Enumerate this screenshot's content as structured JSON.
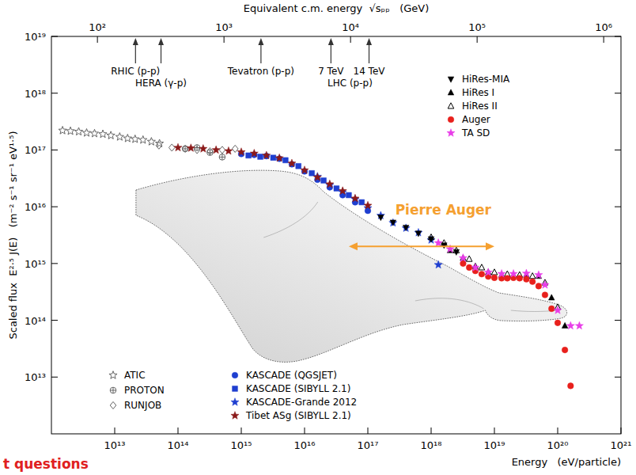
{
  "chart_data": {
    "type": "scatter",
    "x2_label": "Equivalent c.m. energy  √sₚₚ   (GeV)",
    "x_label": "Energy   (eV/particle)",
    "y_label": "Scaled flux  E²·⁵ J(E)   (m⁻² s⁻¹ sr⁻¹ eV¹·⁵)",
    "log": true,
    "grid": false,
    "legend": "lower left",
    "xlim": [
      1000000000000.0,
      1e+21
    ],
    "xticks": [
      {
        "value": 10000000000000.0,
        "label": "10¹³"
      },
      {
        "value": 100000000000000.0,
        "label": "10¹⁴"
      },
      {
        "value": 1000000000000000.0,
        "label": "10¹⁵"
      },
      {
        "value": 1e+16,
        "label": "10¹⁶"
      },
      {
        "value": 1e+17,
        "label": "10¹⁷"
      },
      {
        "value": 1e+18,
        "label": "10¹⁸"
      },
      {
        "value": 1e+19,
        "label": "10¹⁹"
      },
      {
        "value": 1e+20,
        "label": "10²⁰"
      },
      {
        "value": 1e+21,
        "label": "10²¹"
      }
    ],
    "ylim": [
      1000000000000.0,
      1e+19
    ],
    "yticks": [
      {
        "value": 10000000000000.0,
        "label": "10¹³"
      },
      {
        "value": 100000000000000.0,
        "label": "10¹⁴"
      },
      {
        "value": 1000000000000000.0,
        "label": "10¹⁵"
      },
      {
        "value": 1e+16,
        "label": "10¹⁶"
      },
      {
        "value": 1e+17,
        "label": "10¹⁷"
      },
      {
        "value": 1e+18,
        "label": "10¹⁸"
      },
      {
        "value": 1e+19,
        "label": "10¹⁹"
      }
    ],
    "x2lim": [
      43.31,
      1369700
    ],
    "x2ticks": [
      {
        "value": 100,
        "label": "10²"
      },
      {
        "value": 1000,
        "label": "10³"
      },
      {
        "value": 10000,
        "label": "10⁴"
      },
      {
        "value": 100000,
        "label": "10⁵"
      },
      {
        "value": 1000000,
        "label": "10⁶"
      }
    ],
    "accelerators": [
      {
        "x2": 200,
        "label": "RHIC (p-p)"
      },
      {
        "x2": 318,
        "label": "HERA (γ-p)"
      },
      {
        "x2": 1960,
        "label": "Tevatron (p-p)"
      },
      {
        "x2": 7000,
        "label": "7 TeV"
      },
      {
        "x2": 14000,
        "label": "14 TeV"
      }
    ],
    "accelerator_group": {
      "x2": [
        7000,
        14000
      ],
      "label": "LHC (p-p)"
    },
    "range_annotation": {
      "label": "Pierre Auger",
      "x": [
        5e+16,
        1e+19
      ],
      "y": 2000000000000000.0,
      "color": "#f5a030"
    },
    "slide_text": "t questions",
    "series": [
      {
        "name": "ATIC",
        "color": "#666666",
        "marker": "open-star",
        "x": [
          1500000000000.0,
          2000000000000.0,
          2700000000000.0,
          3600000000000.0,
          4800000000000.0,
          6500000000000.0,
          8700000000000.0,
          12000000000000.0,
          16000000000000.0,
          21000000000000.0,
          28000000000000.0,
          38000000000000.0,
          51000000000000.0
        ],
        "values": [
          2.2e+17,
          2.15e+17,
          2.1e+17,
          2e+17,
          1.95e+17,
          1.9e+17,
          1.8e+17,
          1.7e+17,
          1.6e+17,
          1.55e+17,
          1.5e+17,
          1.4e+17,
          1.3e+17
        ]
      },
      {
        "name": "PROTON",
        "color": "#666666",
        "marker": "circle-cross",
        "x": [
          130000000000000.0,
          200000000000000.0,
          320000000000000.0,
          500000000000000.0
        ],
        "values": [
          1.05e+17,
          1.1e+17,
          9e+16,
          7.5e+16
        ]
      },
      {
        "name": "RUNJOB",
        "color": "#666666",
        "marker": "open-diamond",
        "x": [
          50000000000000.0,
          80000000000000.0,
          130000000000000.0,
          200000000000000.0,
          320000000000000.0,
          500000000000000.0,
          800000000000000.0
        ],
        "values": [
          1.2e+17,
          1.1e+17,
          1.05e+17,
          1e+17,
          9.5e+16,
          1e+17,
          1.05e+17
        ]
      },
      {
        "name": "KASCADE (QGSJET)",
        "color": "#1f3fd0",
        "marker": "circle",
        "x": [
          1000000000000000.0,
          1600000000000000.0,
          2500000000000000.0,
          4000000000000000.0,
          6300000000000000.0,
          1e+16,
          1.6e+16,
          2.5e+16,
          4e+16,
          6.3e+16,
          1e+17
        ],
        "values": [
          8.5e+16,
          8.2e+16,
          7.8e+16,
          7e+16,
          5.6e+16,
          4.2e+16,
          3e+16,
          2.2e+16,
          1.6e+16,
          1.2e+16,
          8500000000000000.0
        ]
      },
      {
        "name": "KASCADE (SIBYLL 2.1)",
        "color": "#1f3fd0",
        "marker": "square",
        "x": [
          1300000000000000.0,
          2000000000000000.0,
          3200000000000000.0,
          5000000000000000.0,
          8000000000000000.0,
          1.3e+16,
          2e+16,
          3.2e+16,
          5e+16,
          8e+16
        ],
        "values": [
          8e+16,
          7.6e+16,
          7.3e+16,
          6.6e+16,
          5.2e+16,
          3.9e+16,
          2.9e+16,
          2.1e+16,
          1.6e+16,
          1.2e+16
        ]
      },
      {
        "name": "KASCADE-Grande 2012",
        "color": "#1f3fd0",
        "marker": "star",
        "x": [
          1.6e+16,
          2.5e+16,
          4e+16,
          6.3e+16,
          1e+17,
          1.6e+17,
          2.5e+17,
          4e+17,
          6.3e+17,
          1e+18,
          1.3e+18
        ],
        "values": [
          3.4e+16,
          2.4e+16,
          1.8e+16,
          1.35e+16,
          9500000000000000.0,
          7000000000000000.0,
          5200000000000000.0,
          4200000000000000.0,
          3500000000000000.0,
          2600000000000000.0,
          950000000000000.0
        ]
      },
      {
        "name": "Tibet ASg (SIBYLL 2.1)",
        "color": "#8b1a1a",
        "marker": "star",
        "x": [
          100000000000000.0,
          160000000000000.0,
          250000000000000.0,
          400000000000000.0,
          630000000000000.0,
          1000000000000000.0,
          1600000000000000.0,
          2500000000000000.0,
          4000000000000000.0,
          6300000000000000.0,
          1e+16,
          1.6e+16,
          2.5e+16,
          4e+16,
          6.3e+16,
          1e+17
        ],
        "values": [
          1.1e+17,
          1.08e+17,
          1.05e+17,
          1e+17,
          9.6e+16,
          9.2e+16,
          8.7e+16,
          8e+16,
          7.2e+16,
          5.8e+16,
          4.4e+16,
          3.3e+16,
          2.5e+16,
          1.9e+16,
          1.4e+16,
          1.05e+16
        ]
      },
      {
        "name": "HiRes-MIA",
        "color": "#000000",
        "marker": "triangle-down",
        "x": [
          1.6e+17,
          2.5e+17,
          4e+17,
          6.3e+17,
          1e+18,
          1.6e+18,
          2.5e+18
        ],
        "values": [
          6500000000000000.0,
          5300000000000000.0,
          4300000000000000.0,
          3400000000000000.0,
          2700000000000000.0,
          2100000000000000.0,
          1600000000000000.0
        ]
      },
      {
        "name": "HiRes I",
        "color": "#000000",
        "marker": "triangle-up",
        "x": [
          2e+18,
          3.2e+18,
          5e+18,
          8e+18,
          1.3e+19,
          2e+19,
          3.2e+19,
          5e+19,
          8e+19,
          1.3e+20
        ],
        "values": [
          1700000000000000.0,
          1250000000000000.0,
          900000000000000.0,
          700000000000000.0,
          630000000000000.0,
          620000000000000.0,
          630000000000000.0,
          600000000000000.0,
          250000000000000.0,
          80000000000000.0
        ]
      },
      {
        "name": "HiRes II",
        "color": "#000000",
        "marker": "open-triangle-up",
        "x": [
          1e+18,
          1.6e+18,
          2.5e+18,
          4e+18,
          6.3e+18,
          1e+19,
          1.6e+19,
          2.5e+19,
          4e+19,
          6.3e+19,
          1e+20
        ],
        "values": [
          2900000000000000.0,
          2300000000000000.0,
          1700000000000000.0,
          1200000000000000.0,
          850000000000000.0,
          700000000000000.0,
          650000000000000.0,
          630000000000000.0,
          600000000000000.0,
          460000000000000.0,
          170000000000000.0
        ]
      },
      {
        "name": "Auger",
        "color": "#e8201c",
        "marker": "circle",
        "x": [
          3.2e+18,
          4e+18,
          5e+18,
          6.3e+18,
          8e+18,
          1e+19,
          1.3e+19,
          1.6e+19,
          2e+19,
          2.5e+19,
          3.2e+19,
          4e+19,
          5e+19,
          6.3e+19,
          8e+19,
          1e+20,
          1.3e+20,
          1.6e+20
        ],
        "values": [
          1000000000000000.0,
          850000000000000.0,
          740000000000000.0,
          650000000000000.0,
          590000000000000.0,
          560000000000000.0,
          550000000000000.0,
          550000000000000.0,
          560000000000000.0,
          550000000000000.0,
          530000000000000.0,
          480000000000000.0,
          400000000000000.0,
          280000000000000.0,
          160000000000000.0,
          90000000000000.0,
          30000000000000.0,
          7000000000000.0
        ]
      },
      {
        "name": "TA SD",
        "color": "#e83ee8",
        "marker": "star",
        "x": [
          1.3e+18,
          2e+18,
          3.2e+18,
          5e+18,
          8e+18,
          1.3e+19,
          2e+19,
          3.2e+19,
          5e+19,
          6.3e+19,
          1e+20,
          1.6e+20,
          2.2e+20
        ],
        "values": [
          2300000000000000.0,
          1800000000000000.0,
          1250000000000000.0,
          850000000000000.0,
          700000000000000.0,
          660000000000000.0,
          660000000000000.0,
          670000000000000.0,
          630000000000000.0,
          420000000000000.0,
          150000000000000.0,
          80000000000000.0,
          80000000000000.0
        ]
      }
    ]
  }
}
